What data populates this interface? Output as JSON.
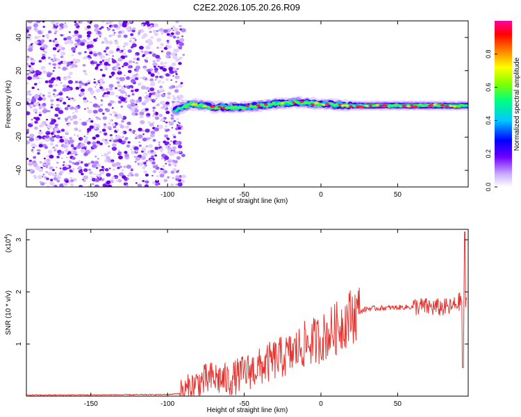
{
  "figure_title": "C2E2.2026.105.20.26.R09",
  "colors": {
    "snr_line": "#e8322e",
    "background": "#ffffff",
    "axis": "#000000"
  },
  "chart_data": [
    {
      "type": "heatmap",
      "title": "C2E2.2026.105.20.26.R09",
      "xlabel": "Height of straight line (km)",
      "ylabel": "Frequency (Hz)",
      "xlim": [
        -192,
        96
      ],
      "ylim": [
        -50,
        50
      ],
      "xticks": [
        -150,
        -100,
        -50,
        0,
        50
      ],
      "yticks": [
        -40,
        -20,
        0,
        20,
        40
      ],
      "colorbar": {
        "label": "Normalized spectral amplitude",
        "range": [
          0,
          1
        ],
        "ticks": [
          "0.0",
          "0.2",
          "0.4",
          "0.6",
          "0.8"
        ],
        "colormap": [
          "#ffffff",
          "#7000ff",
          "#0000ff",
          "#00c8ff",
          "#00ff80",
          "#80ff00",
          "#ffff00",
          "#ff8000",
          "#ff0000",
          "#ff00a0"
        ]
      },
      "noise_region_km": [
        -192,
        -91
      ],
      "signal_ridge": [
        {
          "x": -95,
          "f": -4
        },
        {
          "x": -85,
          "f": 0
        },
        {
          "x": -70,
          "f": -2
        },
        {
          "x": -50,
          "f": -2
        },
        {
          "x": -30,
          "f": 0
        },
        {
          "x": -15,
          "f": 1
        },
        {
          "x": 0,
          "f": 0
        },
        {
          "x": 20,
          "f": -1
        },
        {
          "x": 50,
          "f": -1
        },
        {
          "x": 90,
          "f": -1
        }
      ]
    },
    {
      "type": "line",
      "xlabel": "Height of straight line (km)",
      "ylabel": "SNR (10 * v/v)",
      "scale_label": "(x10",
      "scale_exponent": "4",
      "scale_suffix": ")",
      "xlim": [
        -192,
        96
      ],
      "ylim": [
        0,
        3.2
      ],
      "xticks": [
        -150,
        -100,
        -50,
        0,
        50
      ],
      "yticks": [
        1,
        2,
        3
      ],
      "series": [
        {
          "name": "SNR",
          "x": [
            -192,
            -100,
            -90,
            -80,
            -70,
            -60,
            -50,
            -40,
            -30,
            -20,
            -10,
            0,
            10,
            20,
            30,
            50,
            65,
            75,
            85,
            92,
            95
          ],
          "values": [
            0.02,
            0.03,
            0.06,
            0.25,
            0.35,
            0.3,
            0.45,
            0.55,
            0.7,
            0.8,
            1.0,
            1.1,
            1.3,
            1.55,
            1.68,
            1.7,
            1.72,
            1.7,
            1.7,
            1.85,
            1.72
          ]
        }
      ]
    }
  ]
}
